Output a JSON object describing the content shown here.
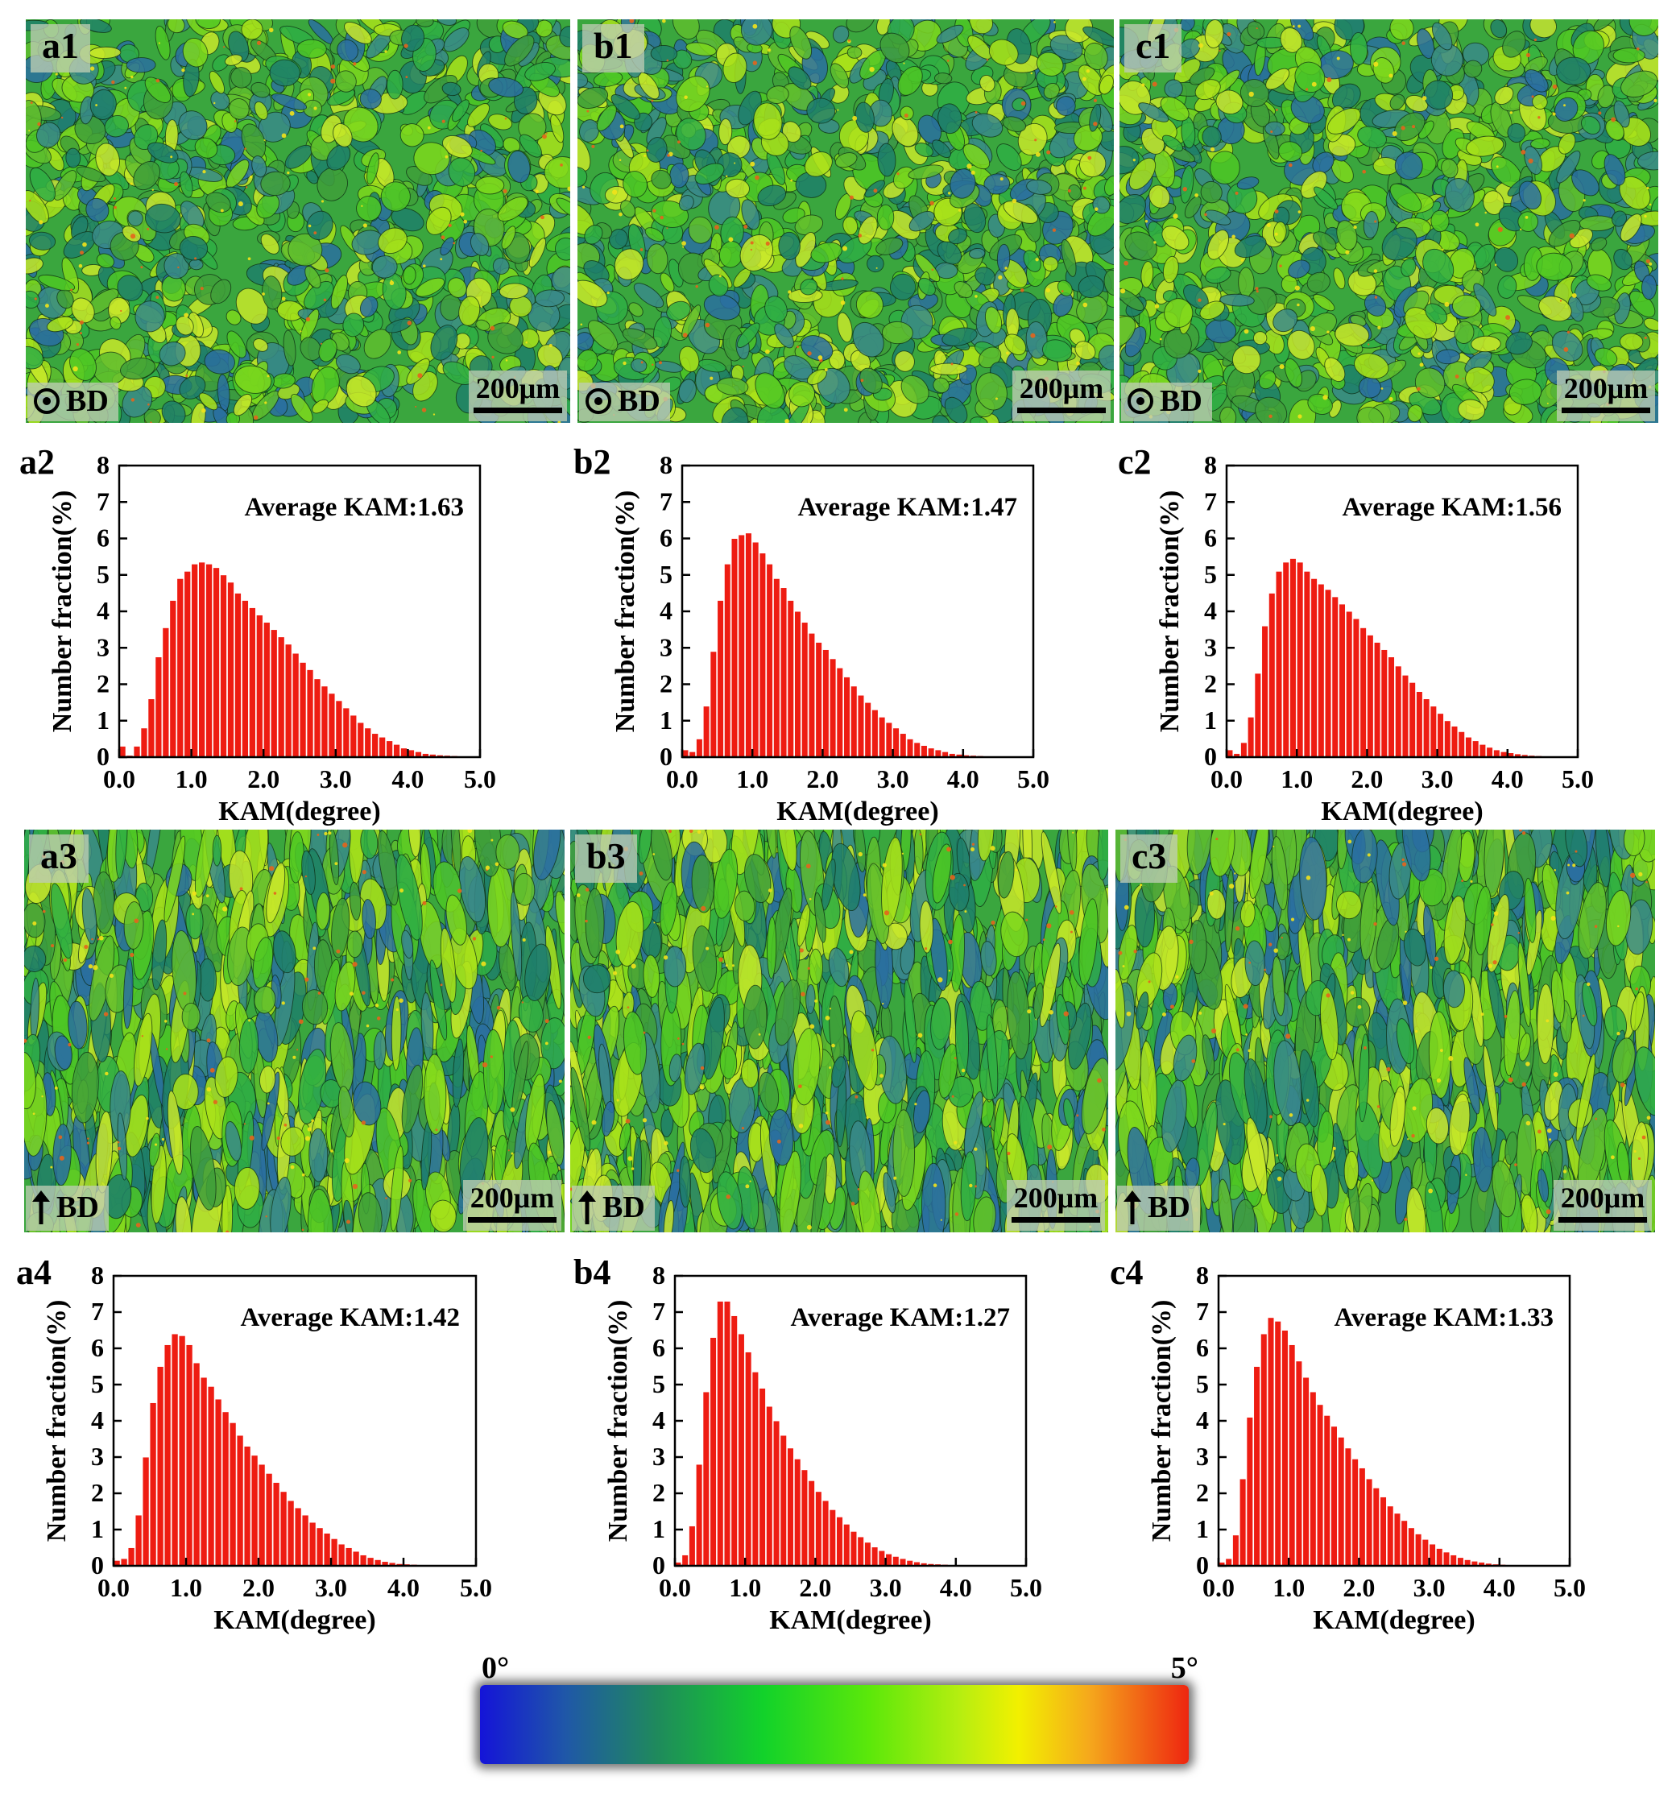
{
  "figure": {
    "maps": [
      {
        "id": "a1",
        "label": "a1",
        "direction": "⊙BD",
        "view": "plane",
        "scale_bar": "200μm"
      },
      {
        "id": "b1",
        "label": "b1",
        "direction": "⊙BD",
        "view": "plane",
        "scale_bar": "200μm"
      },
      {
        "id": "c1",
        "label": "c1",
        "direction": "⊙BD",
        "view": "plane",
        "scale_bar": "200μm"
      },
      {
        "id": "a3",
        "label": "a3",
        "direction": "↑BD",
        "view": "side",
        "scale_bar": "200μm"
      },
      {
        "id": "b3",
        "label": "b3",
        "direction": "↑BD",
        "view": "side",
        "scale_bar": "200μm"
      },
      {
        "id": "c3",
        "label": "c3",
        "direction": "↑BD",
        "view": "side",
        "scale_bar": "200μm"
      }
    ],
    "colorbar": {
      "min_label": "0°",
      "max_label": "5°",
      "colors": [
        "#1414d8",
        "#1f8a5c",
        "#12d22a",
        "#b8ee10",
        "#f2f000",
        "#ee2610"
      ]
    },
    "bar_color": "#ee1c12"
  },
  "chart_data": [
    {
      "id": "a2",
      "panel_label": "a2",
      "type": "bar",
      "annotation": "Average KAM:1.63",
      "xlabel": "KAM(degree)",
      "ylabel": "Number fraction(%)",
      "xlim": [
        0.0,
        5.0
      ],
      "ylim": [
        0,
        8
      ],
      "bin_width": 0.1,
      "x_ticks": [
        "0.0",
        "1.0",
        "2.0",
        "3.0",
        "4.0",
        "5.0"
      ],
      "y_ticks": [
        "0",
        "1",
        "2",
        "3",
        "4",
        "5",
        "6",
        "7",
        "8"
      ],
      "x": [
        0.05,
        0.15,
        0.25,
        0.35,
        0.45,
        0.55,
        0.65,
        0.75,
        0.85,
        0.95,
        1.05,
        1.15,
        1.25,
        1.35,
        1.45,
        1.55,
        1.65,
        1.75,
        1.85,
        1.95,
        2.05,
        2.15,
        2.25,
        2.35,
        2.45,
        2.55,
        2.65,
        2.75,
        2.85,
        2.95,
        3.05,
        3.15,
        3.25,
        3.35,
        3.45,
        3.55,
        3.65,
        3.75,
        3.85,
        3.95,
        4.05,
        4.15,
        4.25,
        4.35,
        4.45,
        4.55,
        4.65,
        4.75,
        4.85,
        4.95
      ],
      "values": [
        0.3,
        0.05,
        0.3,
        0.8,
        1.6,
        2.75,
        3.55,
        4.3,
        4.9,
        5.1,
        5.3,
        5.35,
        5.3,
        5.2,
        5.0,
        4.8,
        4.5,
        4.3,
        4.1,
        3.9,
        3.7,
        3.5,
        3.3,
        3.1,
        2.85,
        2.6,
        2.4,
        2.15,
        1.95,
        1.75,
        1.55,
        1.35,
        1.15,
        0.95,
        0.8,
        0.65,
        0.55,
        0.45,
        0.35,
        0.25,
        0.2,
        0.15,
        0.1,
        0.08,
        0.06,
        0.05,
        0.04,
        0.03,
        0.02,
        0.01
      ]
    },
    {
      "id": "b2",
      "panel_label": "b2",
      "type": "bar",
      "annotation": "Average KAM:1.47",
      "xlabel": "KAM(degree)",
      "ylabel": "Number fraction(%)",
      "xlim": [
        0.0,
        5.0
      ],
      "ylim": [
        0,
        8
      ],
      "bin_width": 0.1,
      "x_ticks": [
        "0.0",
        "1.0",
        "2.0",
        "3.0",
        "4.0",
        "5.0"
      ],
      "y_ticks": [
        "0",
        "1",
        "2",
        "3",
        "4",
        "5",
        "6",
        "7",
        "8"
      ],
      "x": [
        0.05,
        0.15,
        0.25,
        0.35,
        0.45,
        0.55,
        0.65,
        0.75,
        0.85,
        0.95,
        1.05,
        1.15,
        1.25,
        1.35,
        1.45,
        1.55,
        1.65,
        1.75,
        1.85,
        1.95,
        2.05,
        2.15,
        2.25,
        2.35,
        2.45,
        2.55,
        2.65,
        2.75,
        2.85,
        2.95,
        3.05,
        3.15,
        3.25,
        3.35,
        3.45,
        3.55,
        3.65,
        3.75,
        3.85,
        3.95,
        4.05,
        4.15,
        4.25,
        4.35,
        4.45,
        4.55,
        4.65,
        4.75,
        4.85,
        4.95
      ],
      "values": [
        0.2,
        0.15,
        0.5,
        1.4,
        2.9,
        4.3,
        5.3,
        6.0,
        6.1,
        6.15,
        5.9,
        5.6,
        5.3,
        4.9,
        4.65,
        4.3,
        4.0,
        3.7,
        3.4,
        3.15,
        2.95,
        2.7,
        2.45,
        2.2,
        1.95,
        1.7,
        1.5,
        1.3,
        1.1,
        0.95,
        0.8,
        0.65,
        0.5,
        0.4,
        0.32,
        0.25,
        0.2,
        0.15,
        0.1,
        0.08,
        0.06,
        0.05,
        0.04,
        0.03,
        0.02,
        0.02,
        0.01,
        0.01,
        0.01,
        0.01
      ]
    },
    {
      "id": "c2",
      "panel_label": "c2",
      "type": "bar",
      "annotation": "Average KAM:1.56",
      "xlabel": "KAM(degree)",
      "ylabel": "Number fraction(%)",
      "xlim": [
        0.0,
        5.0
      ],
      "ylim": [
        0,
        8
      ],
      "bin_width": 0.1,
      "x_ticks": [
        "0.0",
        "1.0",
        "2.0",
        "3.0",
        "4.0",
        "5.0"
      ],
      "y_ticks": [
        "0",
        "1",
        "2",
        "3",
        "4",
        "5",
        "6",
        "7",
        "8"
      ],
      "x": [
        0.05,
        0.15,
        0.25,
        0.35,
        0.45,
        0.55,
        0.65,
        0.75,
        0.85,
        0.95,
        1.05,
        1.15,
        1.25,
        1.35,
        1.45,
        1.55,
        1.65,
        1.75,
        1.85,
        1.95,
        2.05,
        2.15,
        2.25,
        2.35,
        2.45,
        2.55,
        2.65,
        2.75,
        2.85,
        2.95,
        3.05,
        3.15,
        3.25,
        3.35,
        3.45,
        3.55,
        3.65,
        3.75,
        3.85,
        3.95,
        4.05,
        4.15,
        4.25,
        4.35,
        4.45,
        4.55,
        4.65,
        4.75,
        4.85,
        4.95
      ],
      "values": [
        0.2,
        0.1,
        0.4,
        1.1,
        2.3,
        3.6,
        4.5,
        5.1,
        5.35,
        5.45,
        5.35,
        5.1,
        4.9,
        4.75,
        4.6,
        4.4,
        4.2,
        4.0,
        3.8,
        3.55,
        3.35,
        3.15,
        2.95,
        2.75,
        2.5,
        2.25,
        2.05,
        1.8,
        1.6,
        1.4,
        1.2,
        1.0,
        0.85,
        0.7,
        0.55,
        0.45,
        0.35,
        0.27,
        0.2,
        0.15,
        0.12,
        0.09,
        0.07,
        0.05,
        0.04,
        0.03,
        0.02,
        0.02,
        0.01,
        0.01
      ]
    },
    {
      "id": "a4",
      "panel_label": "a4",
      "type": "bar",
      "annotation": "Average KAM:1.42",
      "xlabel": "KAM(degree)",
      "ylabel": "Number fraction(%)",
      "xlim": [
        0.0,
        5.0
      ],
      "ylim": [
        0,
        8
      ],
      "bin_width": 0.1,
      "x_ticks": [
        "0.0",
        "1.0",
        "2.0",
        "3.0",
        "4.0",
        "5.0"
      ],
      "y_ticks": [
        "0",
        "1",
        "2",
        "3",
        "4",
        "5",
        "6",
        "7",
        "8"
      ],
      "x": [
        0.05,
        0.15,
        0.25,
        0.35,
        0.45,
        0.55,
        0.65,
        0.75,
        0.85,
        0.95,
        1.05,
        1.15,
        1.25,
        1.35,
        1.45,
        1.55,
        1.65,
        1.75,
        1.85,
        1.95,
        2.05,
        2.15,
        2.25,
        2.35,
        2.45,
        2.55,
        2.65,
        2.75,
        2.85,
        2.95,
        3.05,
        3.15,
        3.25,
        3.35,
        3.45,
        3.55,
        3.65,
        3.75,
        3.85,
        3.95,
        4.05,
        4.15,
        4.25,
        4.35,
        4.45,
        4.55,
        4.65,
        4.75,
        4.85,
        4.95
      ],
      "values": [
        0.15,
        0.2,
        0.5,
        1.4,
        3.0,
        4.5,
        5.5,
        6.1,
        6.4,
        6.35,
        6.1,
        5.6,
        5.2,
        4.95,
        4.6,
        4.25,
        3.95,
        3.6,
        3.3,
        3.05,
        2.8,
        2.55,
        2.3,
        2.05,
        1.8,
        1.6,
        1.4,
        1.2,
        1.05,
        0.9,
        0.75,
        0.6,
        0.5,
        0.4,
        0.3,
        0.23,
        0.17,
        0.12,
        0.09,
        0.06,
        0.05,
        0.04,
        0.03,
        0.02,
        0.02,
        0.01,
        0.01,
        0.01,
        0.0,
        0.0
      ]
    },
    {
      "id": "b4",
      "panel_label": "b4",
      "type": "bar",
      "annotation": "Average KAM:1.27",
      "xlabel": "KAM(degree)",
      "ylabel": "Number fraction(%)",
      "xlim": [
        0.0,
        5.0
      ],
      "ylim": [
        0,
        8
      ],
      "bin_width": 0.1,
      "x_ticks": [
        "0.0",
        "1.0",
        "2.0",
        "3.0",
        "4.0",
        "5.0"
      ],
      "y_ticks": [
        "0",
        "1",
        "2",
        "3",
        "4",
        "5",
        "6",
        "7",
        "8"
      ],
      "x": [
        0.05,
        0.15,
        0.25,
        0.35,
        0.45,
        0.55,
        0.65,
        0.75,
        0.85,
        0.95,
        1.05,
        1.15,
        1.25,
        1.35,
        1.45,
        1.55,
        1.65,
        1.75,
        1.85,
        1.95,
        2.05,
        2.15,
        2.25,
        2.35,
        2.45,
        2.55,
        2.65,
        2.75,
        2.85,
        2.95,
        3.05,
        3.15,
        3.25,
        3.35,
        3.45,
        3.55,
        3.65,
        3.75,
        3.85,
        3.95,
        4.05,
        4.15,
        4.25,
        4.35,
        4.45,
        4.55,
        4.65,
        4.75,
        4.85,
        4.95
      ],
      "values": [
        0.1,
        0.3,
        1.1,
        2.8,
        4.8,
        6.3,
        7.3,
        7.3,
        6.9,
        6.4,
        5.9,
        5.35,
        4.9,
        4.4,
        4.0,
        3.6,
        3.25,
        2.95,
        2.65,
        2.35,
        2.05,
        1.8,
        1.55,
        1.35,
        1.15,
        0.95,
        0.8,
        0.65,
        0.52,
        0.42,
        0.33,
        0.26,
        0.2,
        0.15,
        0.11,
        0.08,
        0.06,
        0.05,
        0.04,
        0.03,
        0.02,
        0.02,
        0.01,
        0.01,
        0.01,
        0.01,
        0.0,
        0.0,
        0.0,
        0.0
      ]
    },
    {
      "id": "c4",
      "panel_label": "c4",
      "type": "bar",
      "annotation": "Average KAM:1.33",
      "xlabel": "KAM(degree)",
      "ylabel": "Number fraction(%)",
      "xlim": [
        0.0,
        5.0
      ],
      "ylim": [
        0,
        8
      ],
      "bin_width": 0.1,
      "x_ticks": [
        "0.0",
        "1.0",
        "2.0",
        "3.0",
        "4.0",
        "5.0"
      ],
      "y_ticks": [
        "0",
        "1",
        "2",
        "3",
        "4",
        "5",
        "6",
        "7",
        "8"
      ],
      "x": [
        0.05,
        0.15,
        0.25,
        0.35,
        0.45,
        0.55,
        0.65,
        0.75,
        0.85,
        0.95,
        1.05,
        1.15,
        1.25,
        1.35,
        1.45,
        1.55,
        1.65,
        1.75,
        1.85,
        1.95,
        2.05,
        2.15,
        2.25,
        2.35,
        2.45,
        2.55,
        2.65,
        2.75,
        2.85,
        2.95,
        3.05,
        3.15,
        3.25,
        3.35,
        3.45,
        3.55,
        3.65,
        3.75,
        3.85,
        3.95,
        4.05,
        4.15,
        4.25,
        4.35,
        4.45,
        4.55,
        4.65,
        4.75,
        4.85,
        4.95
      ],
      "values": [
        0.1,
        0.2,
        0.85,
        2.4,
        4.1,
        5.5,
        6.4,
        6.85,
        6.75,
        6.5,
        6.1,
        5.65,
        5.2,
        4.8,
        4.45,
        4.15,
        3.85,
        3.55,
        3.25,
        2.95,
        2.7,
        2.4,
        2.15,
        1.9,
        1.65,
        1.45,
        1.25,
        1.05,
        0.88,
        0.73,
        0.6,
        0.48,
        0.38,
        0.3,
        0.23,
        0.17,
        0.13,
        0.1,
        0.07,
        0.05,
        0.04,
        0.03,
        0.02,
        0.02,
        0.01,
        0.01,
        0.01,
        0.0,
        0.0,
        0.0
      ]
    }
  ]
}
